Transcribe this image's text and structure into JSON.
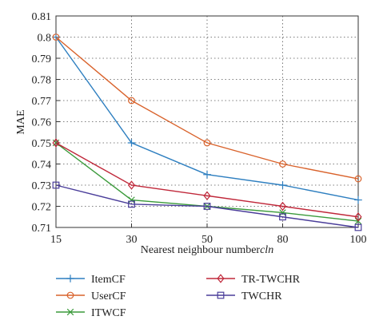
{
  "chart_data": {
    "type": "line",
    "xlabel": "Nearest neighbour number",
    "xlabel_italic": "cln",
    "ylabel": "MAE",
    "categories": [
      "15",
      "30",
      "50",
      "80",
      "100"
    ],
    "yticks": [
      "0.71",
      "0.72",
      "0.73",
      "0.74",
      "0.75",
      "0.76",
      "0.77",
      "0.78",
      "0.79",
      "0.8",
      "0.81"
    ],
    "ylim": [
      0.71,
      0.81
    ],
    "grid": true,
    "legend_position": "bottom",
    "series": [
      {
        "name": "ItemCF",
        "color": "#2e7fc0",
        "marker": "plus",
        "values": [
          0.8,
          0.75,
          0.735,
          0.73,
          0.723
        ]
      },
      {
        "name": "UserCF",
        "color": "#d9622b",
        "marker": "circle",
        "values": [
          0.8,
          0.77,
          0.75,
          0.74,
          0.733
        ]
      },
      {
        "name": "ITWCF",
        "color": "#3a9a3a",
        "marker": "x",
        "values": [
          0.75,
          0.723,
          0.72,
          0.717,
          0.713
        ]
      },
      {
        "name": "TR-TWCHR",
        "color": "#c0283a",
        "marker": "diamond",
        "values": [
          0.75,
          0.73,
          0.725,
          0.72,
          0.715
        ]
      },
      {
        "name": "TWCHR",
        "color": "#4a3d9a",
        "marker": "square",
        "values": [
          0.73,
          0.721,
          0.72,
          0.715,
          0.71
        ]
      }
    ]
  }
}
